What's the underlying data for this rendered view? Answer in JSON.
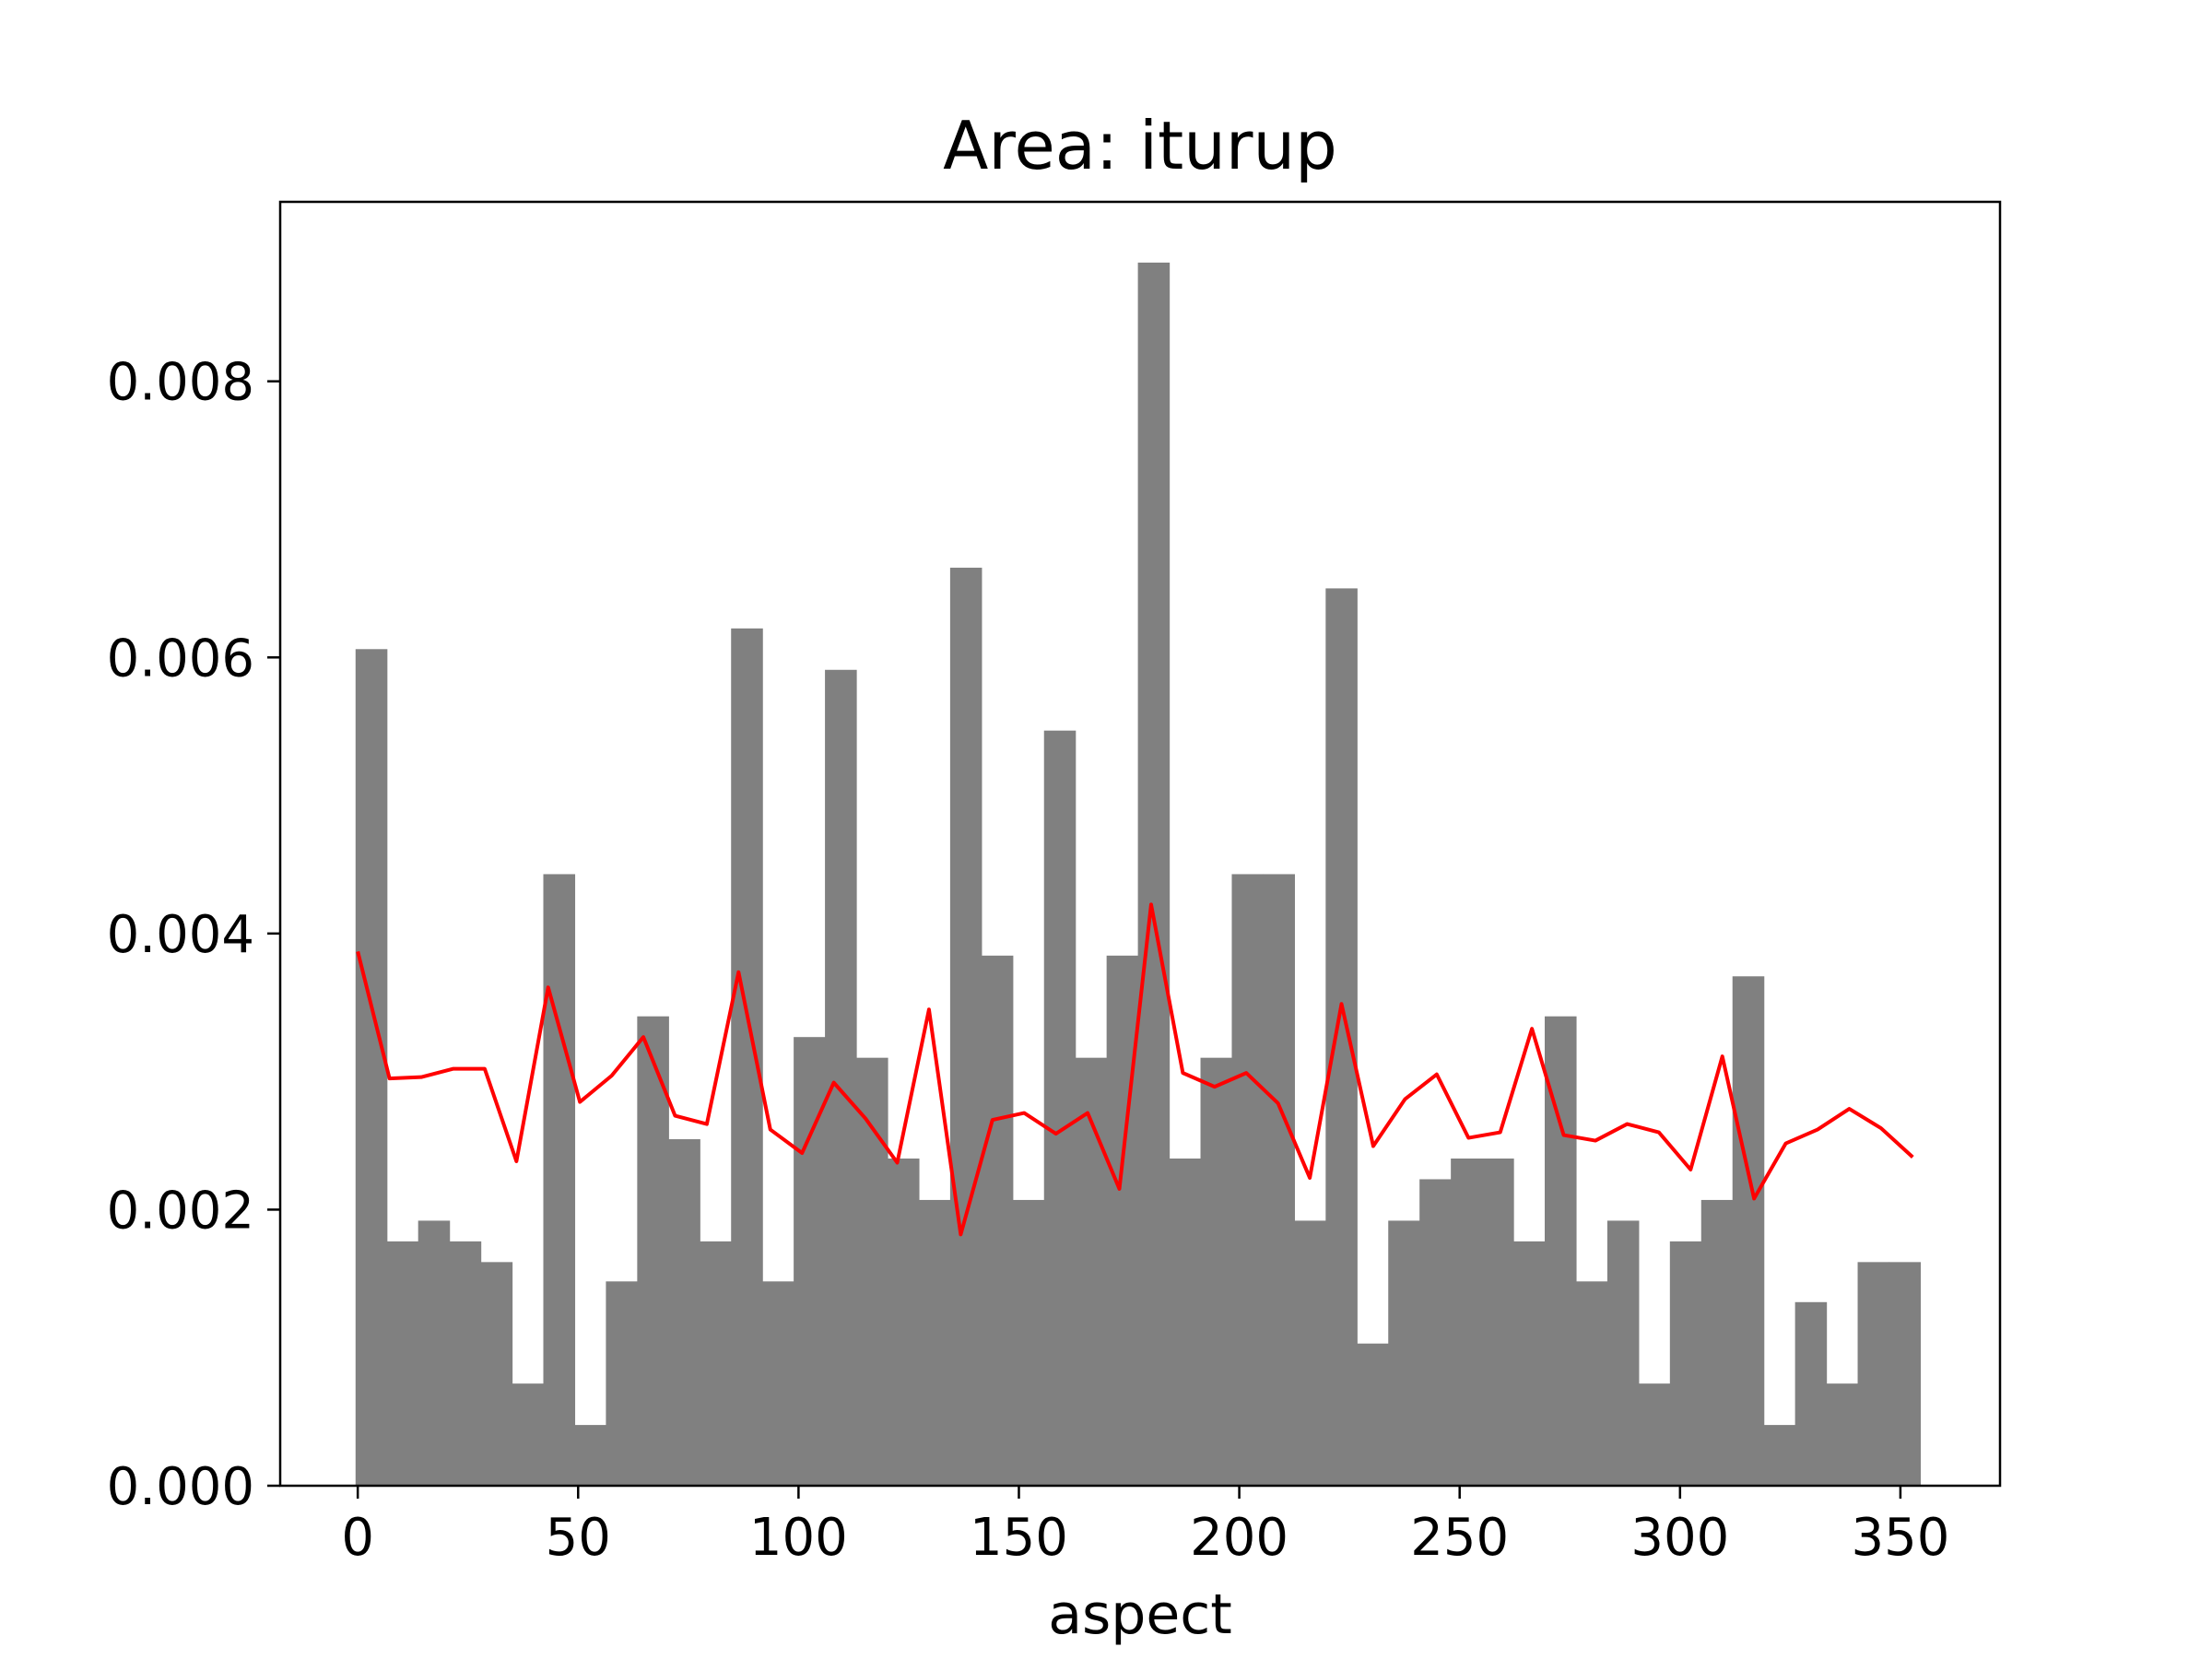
{
  "chart_data": {
    "type": "bar",
    "title": "Area: iturup",
    "xlabel": "aspect",
    "ylabel": "",
    "xlim": [
      -17.6,
      372.6
    ],
    "ylim": [
      0,
      0.0093
    ],
    "grid": false,
    "legend": "none",
    "x_ticks": [
      0,
      50,
      100,
      150,
      200,
      250,
      300,
      350
    ],
    "x_tick_labels": [
      "0",
      "50",
      "100",
      "150",
      "200",
      "250",
      "300",
      "350"
    ],
    "y_ticks": [
      0,
      0.002,
      0.004,
      0.006,
      0.008
    ],
    "y_tick_labels": [
      "0.000",
      "0.002",
      "0.004",
      "0.006",
      "0.008"
    ],
    "bins": {
      "start": -0.5,
      "width": 7.1,
      "values": [
        0.00606,
        0.00177,
        0.00192,
        0.00177,
        0.00162,
        0.00074,
        0.00443,
        0.00044,
        0.00148,
        0.0034,
        0.00251,
        0.00177,
        0.00621,
        0.00148,
        0.00325,
        0.00591,
        0.0031,
        0.00237,
        0.00207,
        0.00665,
        0.00384,
        0.00207,
        0.00547,
        0.0031,
        0.00384,
        0.00886,
        0.00237,
        0.0031,
        0.00443,
        0.00443,
        0.00192,
        0.0065,
        0.00103,
        0.00192,
        0.00222,
        0.00237,
        0.00237,
        0.00177,
        0.0034,
        0.00148,
        0.00192,
        0.00074,
        0.00177,
        0.00207,
        0.00369,
        0.00044,
        0.00133,
        0.00074,
        0.00162,
        0.00162
      ]
    },
    "series": [
      {
        "type": "line",
        "color": "#ff0000",
        "x": [
          0,
          7.2,
          14.4,
          21.6,
          28.8,
          36,
          43.2,
          50.4,
          57.6,
          64.8,
          72,
          79.2,
          86.4,
          93.6,
          100.8,
          108,
          115.2,
          122.4,
          129.6,
          136.8,
          144,
          151.2,
          158.4,
          165.6,
          172.8,
          180,
          187.2,
          194.4,
          201.6,
          208.8,
          216,
          223.2,
          230.4,
          237.6,
          244.8,
          252,
          259.2,
          266.4,
          273.6,
          280.8,
          288,
          295.2,
          302.4,
          309.6,
          316.8,
          324,
          331.2,
          338.4,
          345.6,
          352.8
        ],
        "values": [
          0.00387,
          0.00295,
          0.00296,
          0.00302,
          0.00302,
          0.00235,
          0.00361,
          0.00278,
          0.00297,
          0.00325,
          0.00268,
          0.00262,
          0.00372,
          0.00258,
          0.00241,
          0.00292,
          0.00266,
          0.00234,
          0.00345,
          0.00182,
          0.00265,
          0.0027,
          0.00255,
          0.0027,
          0.00215,
          0.00421,
          0.00299,
          0.00289,
          0.00299,
          0.00277,
          0.00223,
          0.00349,
          0.00246,
          0.0028,
          0.00298,
          0.00252,
          0.00256,
          0.00331,
          0.00254,
          0.0025,
          0.00262,
          0.00256,
          0.00229,
          0.00311,
          0.00208,
          0.00248,
          0.00258,
          0.00273,
          0.00259,
          0.00238
        ]
      }
    ],
    "colors": {
      "bars": "#808080",
      "line": "#ff0000",
      "axes": "#000000"
    }
  }
}
